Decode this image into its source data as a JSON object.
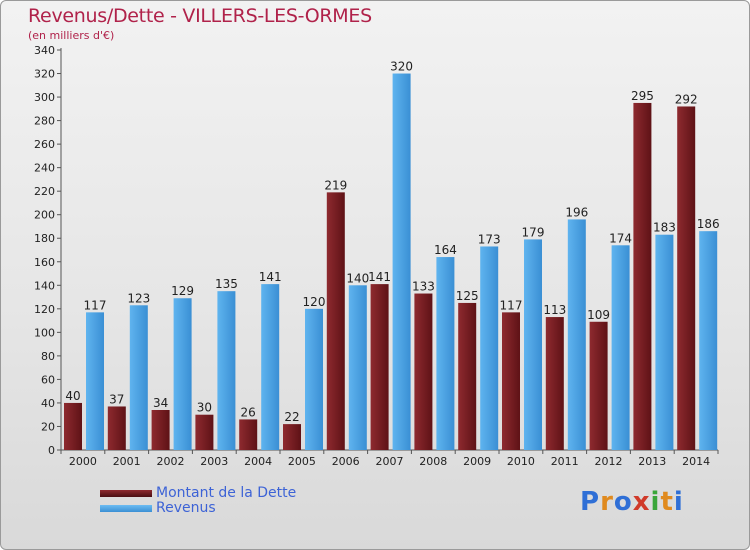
{
  "chart_data": {
    "type": "bar",
    "title": "Revenus/Dette - VILLERS-LES-ORMES",
    "subtitle": "(en milliers d'€)",
    "categories": [
      "2000",
      "2001",
      "2002",
      "2003",
      "2004",
      "2005",
      "2006",
      "2007",
      "2008",
      "2009",
      "2010",
      "2011",
      "2012",
      "2013",
      "2014"
    ],
    "series": [
      {
        "name": "Montant de la Dette",
        "color": "#7a1f24",
        "values": [
          40,
          37,
          34,
          30,
          26,
          22,
          219,
          141,
          133,
          125,
          117,
          113,
          109,
          295,
          292
        ]
      },
      {
        "name": "Revenus",
        "color": "#4aa3e4",
        "values": [
          117,
          123,
          129,
          135,
          141,
          120,
          140,
          320,
          164,
          173,
          179,
          196,
          174,
          183,
          186
        ]
      }
    ],
    "ylim": [
      0,
      340
    ],
    "ytick_step": 20,
    "grid": false,
    "legend_position": "bottom-left"
  },
  "logo": {
    "letters": [
      "P",
      "r",
      "o",
      "x",
      "i",
      "t",
      "i"
    ],
    "colors": [
      "#2f6fd6",
      "#e08a1e",
      "#2f6fd6",
      "#d03a2a",
      "#3aa63a",
      "#e08a1e",
      "#2f6fd6"
    ]
  }
}
